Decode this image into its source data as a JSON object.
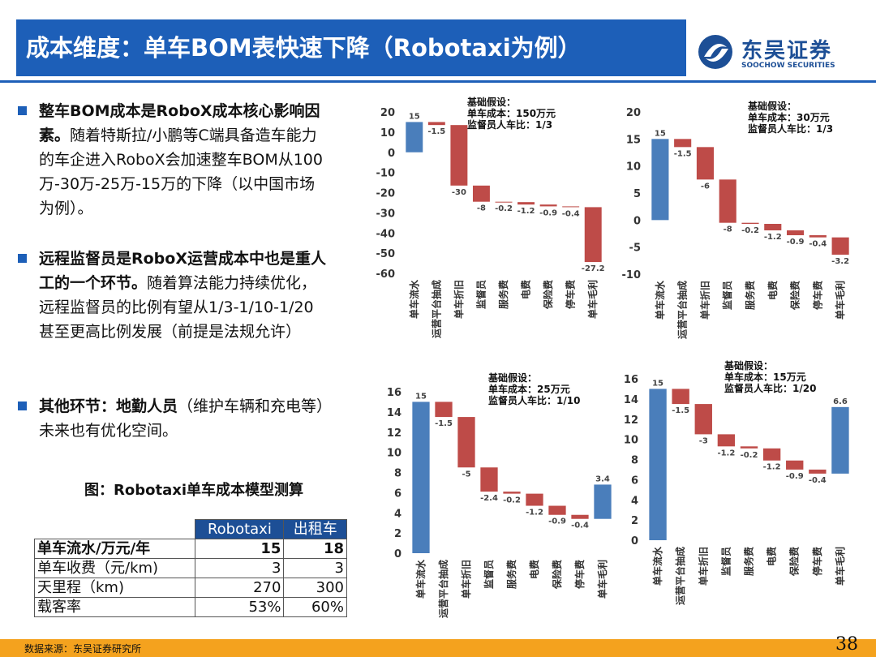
{
  "header": {
    "title": "成本维度：单车BOM表快速下降（Robotaxi为例）",
    "logo_cn": "东吴证券",
    "logo_en": "SOOCHOW SECURITIES"
  },
  "bullets": [
    {
      "lead": "整车BOM成本是RoboX成本核心影响因素。",
      "text": "随着特斯拉/小鹏等C端具备造车能力的车企进入RoboX会加速整车BOM从100万-30万-25万-15万的下降（以中国市场为例）。"
    },
    {
      "lead": "远程监督员是RoboX运营成本中也是重人工的一个环节。",
      "text": "随着算法能力持续优化，远程监督员的比例有望从1/3-1/10-1/20甚至更高比例发展（前提是法规允许）"
    },
    {
      "lead": "其他环节：地勤人员",
      "text": "（维护车辆和充电等）未来也有优化空间。"
    }
  ],
  "caption": "图：Robotaxi单车成本模型测算",
  "table": {
    "header": [
      "Robotaxi",
      "出租车"
    ],
    "rows": [
      [
        "单车流水/万元/年",
        "15",
        "18"
      ],
      [
        "单车收费（元/km)",
        "3",
        "3"
      ],
      [
        "天里程（km)",
        "270",
        "300"
      ],
      [
        "载客率",
        "53%",
        "60%"
      ]
    ]
  },
  "chart_data": [
    {
      "type": "waterfall",
      "annotation": [
        "基础假设：",
        "单车成本：150万元",
        "监督员人车比：1/3"
      ],
      "categories": [
        "单车流水",
        "运营平台抽成",
        "单车折旧",
        "监督员",
        "服务费",
        "电费",
        "保险费",
        "停车费",
        "单车毛利"
      ],
      "values": [
        15,
        -1.5,
        -30,
        -8,
        -0.2,
        -1.2,
        -0.9,
        -0.4,
        -27.2
      ],
      "ylim": [
        -60,
        20
      ],
      "yticks": [
        -60,
        -50,
        -40,
        -30,
        -20,
        -10,
        0,
        10,
        20
      ],
      "increase_color": "#4a7ebb",
      "decrease_color": "#be4b48"
    },
    {
      "type": "waterfall",
      "annotation": [
        "基础假设：",
        "单车成本：30万元",
        "监督员人车比：1/3"
      ],
      "categories": [
        "单车流水",
        "运营平台抽成",
        "单车折旧",
        "监督员",
        "服务费",
        "电费",
        "保险费",
        "停车费",
        "单车毛利"
      ],
      "values": [
        15,
        -1.5,
        -6,
        -8,
        -0.2,
        -1.2,
        -0.9,
        -0.4,
        -3.2
      ],
      "ylim": [
        -10,
        20
      ],
      "yticks": [
        -10,
        -5,
        0,
        5,
        10,
        15,
        20
      ],
      "increase_color": "#4a7ebb",
      "decrease_color": "#be4b48"
    },
    {
      "type": "waterfall",
      "annotation": [
        "基础假设：",
        "单车成本：25万元",
        "监督员人车比：1/10"
      ],
      "categories": [
        "单车流水",
        "运营平台抽成",
        "单车折旧",
        "监督员",
        "服务费",
        "电费",
        "保险费",
        "停车费",
        "单车毛利"
      ],
      "values": [
        15,
        -1.5,
        -5,
        -2.4,
        -0.2,
        -1.2,
        -0.9,
        -0.4,
        3.4
      ],
      "ylim": [
        0,
        16
      ],
      "yticks": [
        0,
        2,
        4,
        6,
        8,
        10,
        12,
        14,
        16
      ],
      "increase_color": "#4a7ebb",
      "decrease_color": "#be4b48"
    },
    {
      "type": "waterfall",
      "annotation": [
        "基础假设：",
        "单车成本：15万元",
        "监督员人车比：1/20"
      ],
      "categories": [
        "单车流水",
        "运营平台抽成",
        "单车折旧",
        "监督员",
        "服务费",
        "电费",
        "保险费",
        "停车费",
        "单车毛利"
      ],
      "values": [
        15,
        -1.5,
        -3,
        -1.2,
        -0.2,
        -1.2,
        -0.9,
        -0.4,
        6.6
      ],
      "ylim": [
        0,
        16
      ],
      "yticks": [
        0,
        2,
        4,
        6,
        8,
        10,
        12,
        14,
        16
      ],
      "increase_color": "#4a7ebb",
      "decrease_color": "#be4b48"
    }
  ],
  "footer": {
    "source": "数据来源：东吴证券研究所",
    "page": "38"
  }
}
